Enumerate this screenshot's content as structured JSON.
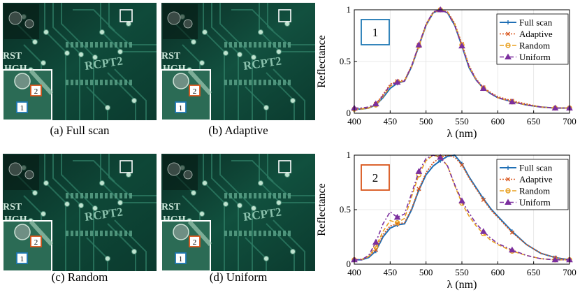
{
  "panels": [
    {
      "caption": "(a) Full scan",
      "tint": "#0f4a3a",
      "label": "RCPT2",
      "silk_a": "RST",
      "silk_b": "HGH",
      "marker1": "1",
      "marker2": "2"
    },
    {
      "caption": "(b) Adaptive",
      "tint": "#12503f",
      "label": "RCPT2",
      "silk_a": "RST",
      "silk_b": "HGH",
      "marker1": "1",
      "marker2": "2"
    },
    {
      "caption": "(c) Random",
      "tint": "#0e4737",
      "label": "RCPT2",
      "silk_a": "RST",
      "silk_b": "HGH",
      "marker1": "1",
      "marker2": "2"
    },
    {
      "caption": "(d) Uniform",
      "tint": "#11503e",
      "label": "RCPT2",
      "silk_a": "RST",
      "silk_b": "HGH",
      "marker1": "1",
      "marker2": "2"
    }
  ],
  "colors": {
    "full": "#1f6fb5",
    "adaptive": "#d9541a",
    "random": "#e8a020",
    "uniform": "#7b2f9e",
    "box1": "#1f78b4",
    "box2": "#d9541a"
  },
  "chart_data": [
    {
      "type": "line",
      "badge": "1",
      "xlabel": "λ (nm)",
      "ylabel": "Reflectance",
      "xlim": [
        400,
        700
      ],
      "ylim": [
        0,
        1
      ],
      "xticks": [
        "400",
        "450",
        "500",
        "550",
        "600",
        "650",
        "700"
      ],
      "yticks": [
        "0",
        "0.5",
        "1"
      ],
      "x": [
        400,
        410,
        420,
        430,
        440,
        450,
        460,
        470,
        480,
        490,
        500,
        510,
        520,
        530,
        540,
        550,
        560,
        570,
        580,
        590,
        600,
        620,
        640,
        660,
        680,
        700
      ],
      "series": [
        {
          "name": "Full scan",
          "values": [
            0.04,
            0.04,
            0.05,
            0.08,
            0.15,
            0.24,
            0.29,
            0.31,
            0.45,
            0.65,
            0.85,
            0.97,
            1.0,
            0.97,
            0.85,
            0.65,
            0.44,
            0.32,
            0.24,
            0.19,
            0.15,
            0.11,
            0.08,
            0.06,
            0.05,
            0.05
          ]
        },
        {
          "name": "Adaptive",
          "values": [
            0.04,
            0.045,
            0.05,
            0.09,
            0.18,
            0.28,
            0.31,
            0.32,
            0.46,
            0.66,
            0.86,
            0.98,
            1.0,
            0.98,
            0.87,
            0.67,
            0.46,
            0.33,
            0.25,
            0.2,
            0.16,
            0.12,
            0.09,
            0.06,
            0.05,
            0.05
          ]
        },
        {
          "name": "Random",
          "values": [
            0.04,
            0.04,
            0.05,
            0.08,
            0.16,
            0.26,
            0.3,
            0.31,
            0.45,
            0.65,
            0.85,
            0.97,
            1.0,
            0.98,
            0.86,
            0.66,
            0.45,
            0.32,
            0.24,
            0.19,
            0.15,
            0.11,
            0.08,
            0.06,
            0.05,
            0.05
          ]
        },
        {
          "name": "Uniform",
          "values": [
            0.05,
            0.05,
            0.06,
            0.09,
            0.17,
            0.27,
            0.3,
            0.31,
            0.46,
            0.66,
            0.86,
            0.98,
            1.0,
            0.97,
            0.85,
            0.65,
            0.45,
            0.32,
            0.24,
            0.19,
            0.15,
            0.11,
            0.08,
            0.06,
            0.05,
            0.05
          ]
        }
      ]
    },
    {
      "type": "line",
      "badge": "2",
      "xlabel": "λ (nm)",
      "ylabel": "Reflectance",
      "xlim": [
        400,
        700
      ],
      "ylim": [
        0,
        1
      ],
      "xticks": [
        "400",
        "450",
        "500",
        "550",
        "600",
        "650",
        "700"
      ],
      "yticks": [
        "0",
        "0.5",
        "1"
      ],
      "x": [
        400,
        410,
        420,
        430,
        440,
        450,
        460,
        470,
        480,
        490,
        500,
        510,
        520,
        530,
        540,
        550,
        560,
        570,
        580,
        590,
        600,
        620,
        640,
        660,
        680,
        700
      ],
      "series": [
        {
          "name": "Full scan",
          "values": [
            0.04,
            0.04,
            0.06,
            0.12,
            0.25,
            0.33,
            0.36,
            0.37,
            0.5,
            0.68,
            0.82,
            0.9,
            0.95,
            0.99,
            1.0,
            0.92,
            0.8,
            0.7,
            0.6,
            0.51,
            0.44,
            0.3,
            0.18,
            0.1,
            0.06,
            0.04
          ]
        },
        {
          "name": "Adaptive",
          "values": [
            0.04,
            0.045,
            0.07,
            0.13,
            0.27,
            0.35,
            0.37,
            0.38,
            0.51,
            0.69,
            0.84,
            0.93,
            0.98,
            1.0,
            0.98,
            0.91,
            0.79,
            0.69,
            0.59,
            0.5,
            0.43,
            0.29,
            0.18,
            0.1,
            0.06,
            0.04
          ]
        },
        {
          "name": "Random",
          "values": [
            0.04,
            0.04,
            0.07,
            0.16,
            0.3,
            0.4,
            0.38,
            0.42,
            0.62,
            0.82,
            0.95,
            1.0,
            0.98,
            0.9,
            0.72,
            0.56,
            0.44,
            0.35,
            0.28,
            0.22,
            0.18,
            0.12,
            0.08,
            0.05,
            0.04,
            0.04
          ]
        },
        {
          "name": "Uniform",
          "values": [
            0.04,
            0.04,
            0.08,
            0.2,
            0.37,
            0.48,
            0.43,
            0.46,
            0.65,
            0.85,
            0.97,
            1.0,
            0.98,
            0.9,
            0.73,
            0.58,
            0.47,
            0.37,
            0.3,
            0.24,
            0.19,
            0.13,
            0.08,
            0.05,
            0.04,
            0.04
          ]
        }
      ]
    }
  ]
}
